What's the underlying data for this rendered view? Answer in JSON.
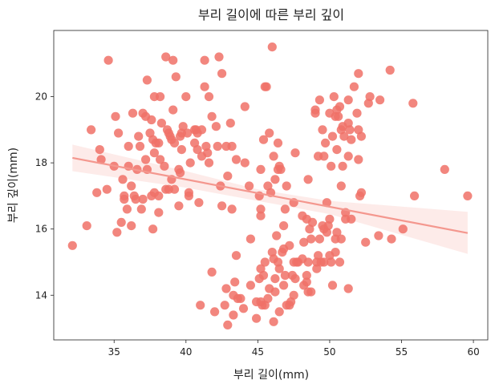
{
  "chart_data": {
    "type": "scatter",
    "title": "부리 길이에 따른 부리 깊이",
    "xlabel": "부리 길이(mm)",
    "ylabel": "부리 깊이(mm)",
    "xlim": [
      30.8,
      61.0
    ],
    "ylim": [
      12.65,
      22.0
    ],
    "xticks": [
      35,
      40,
      45,
      50,
      55,
      60
    ],
    "yticks": [
      14,
      16,
      18,
      20
    ],
    "xtick_labels": [
      "35",
      "40",
      "45",
      "50",
      "55",
      "60"
    ],
    "ytick_labels": [
      "14",
      "16",
      "18",
      "20"
    ],
    "grid": false,
    "colors": {
      "point": "#f07167",
      "line": "#f4978e",
      "band": "#fde6e4"
    },
    "regression": {
      "x": [
        32.1,
        59.6
      ],
      "y": [
        18.15,
        15.88
      ]
    },
    "confidence_band": {
      "x": [
        32.1,
        40.0,
        45.0,
        50.0,
        59.6
      ],
      "upper": [
        18.55,
        17.75,
        17.2,
        16.85,
        16.52
      ],
      "lower": [
        17.75,
        17.25,
        16.85,
        16.45,
        15.25
      ]
    },
    "points": [
      [
        32.1,
        15.5
      ],
      [
        33.1,
        16.1
      ],
      [
        33.4,
        19.0
      ],
      [
        33.8,
        17.1
      ],
      [
        34.1,
        18.1
      ],
      [
        34.0,
        18.4
      ],
      [
        34.6,
        21.1
      ],
      [
        34.5,
        17.2
      ],
      [
        35.0,
        17.9
      ],
      [
        35.1,
        19.4
      ],
      [
        35.3,
        18.9
      ],
      [
        35.5,
        16.2
      ],
      [
        35.2,
        15.9
      ],
      [
        35.6,
        17.5
      ],
      [
        35.7,
        17.0
      ],
      [
        35.7,
        16.9
      ],
      [
        35.9,
        16.6
      ],
      [
        36.0,
        17.9
      ],
      [
        36.0,
        18.5
      ],
      [
        36.2,
        17.3
      ],
      [
        36.2,
        16.1
      ],
      [
        36.3,
        19.5
      ],
      [
        36.4,
        17.0
      ],
      [
        36.5,
        16.9
      ],
      [
        36.6,
        17.8
      ],
      [
        36.7,
        18.8
      ],
      [
        36.8,
        18.5
      ],
      [
        36.9,
        16.6
      ],
      [
        37.0,
        16.9
      ],
      [
        37.0,
        19.5
      ],
      [
        37.2,
        18.1
      ],
      [
        37.2,
        19.4
      ],
      [
        37.3,
        20.5
      ],
      [
        37.3,
        17.8
      ],
      [
        37.5,
        18.9
      ],
      [
        37.6,
        17.0
      ],
      [
        37.6,
        19.3
      ],
      [
        37.7,
        18.7
      ],
      [
        37.7,
        16.0
      ],
      [
        37.8,
        18.3
      ],
      [
        37.8,
        20.0
      ],
      [
        37.8,
        17.1
      ],
      [
        37.9,
        18.6
      ],
      [
        38.1,
        18.6
      ],
      [
        38.1,
        17.0
      ],
      [
        38.1,
        16.5
      ],
      [
        38.2,
        18.1
      ],
      [
        38.2,
        20.0
      ],
      [
        38.3,
        19.2
      ],
      [
        38.5,
        17.9
      ],
      [
        38.6,
        21.2
      ],
      [
        38.6,
        17.2
      ],
      [
        38.7,
        19.0
      ],
      [
        38.8,
        18.9
      ],
      [
        38.8,
        17.2
      ],
      [
        38.9,
        18.8
      ],
      [
        39.0,
        17.5
      ],
      [
        39.0,
        18.7
      ],
      [
        39.1,
        21.1
      ],
      [
        39.1,
        19.6
      ],
      [
        39.2,
        18.6
      ],
      [
        39.2,
        17.2
      ],
      [
        39.3,
        20.6
      ],
      [
        39.5,
        16.7
      ],
      [
        39.5,
        17.8
      ],
      [
        39.6,
        18.8
      ],
      [
        39.6,
        17.7
      ],
      [
        39.7,
        18.9
      ],
      [
        39.7,
        18.4
      ],
      [
        39.8,
        19.1
      ],
      [
        40.0,
        20.0
      ],
      [
        40.1,
        18.9
      ],
      [
        40.2,
        17.0
      ],
      [
        40.2,
        17.1
      ],
      [
        40.3,
        18.0
      ],
      [
        40.6,
        18.6
      ],
      [
        40.6,
        19.0
      ],
      [
        40.7,
        19.0
      ],
      [
        40.8,
        18.4
      ],
      [
        40.8,
        18.9
      ],
      [
        40.9,
        16.8
      ],
      [
        41.0,
        13.7
      ],
      [
        41.1,
        18.2
      ],
      [
        41.1,
        19.0
      ],
      [
        41.3,
        20.3
      ],
      [
        41.3,
        21.1
      ],
      [
        41.4,
        18.5
      ],
      [
        41.5,
        18.3
      ],
      [
        41.6,
        18.0
      ],
      [
        41.6,
        20.0
      ],
      [
        41.8,
        19.4
      ],
      [
        41.8,
        14.7
      ],
      [
        42.0,
        13.5
      ],
      [
        42.1,
        19.1
      ],
      [
        42.2,
        18.5
      ],
      [
        42.3,
        21.2
      ],
      [
        42.4,
        17.3
      ],
      [
        42.5,
        16.7
      ],
      [
        42.5,
        20.7
      ],
      [
        42.7,
        13.7
      ],
      [
        42.8,
        14.2
      ],
      [
        42.8,
        18.5
      ],
      [
        42.9,
        13.1
      ],
      [
        42.9,
        17.6
      ],
      [
        43.1,
        19.2
      ],
      [
        43.2,
        18.5
      ],
      [
        43.2,
        16.6
      ],
      [
        43.3,
        14.0
      ],
      [
        43.3,
        13.4
      ],
      [
        43.4,
        14.4
      ],
      [
        43.5,
        15.2
      ],
      [
        43.5,
        18.1
      ],
      [
        43.6,
        13.9
      ],
      [
        43.8,
        13.9
      ],
      [
        44.0,
        13.6
      ],
      [
        44.1,
        19.7
      ],
      [
        44.1,
        18.0
      ],
      [
        44.4,
        17.3
      ],
      [
        44.5,
        14.3
      ],
      [
        44.5,
        15.7
      ],
      [
        44.9,
        13.8
      ],
      [
        44.9,
        13.3
      ],
      [
        45.1,
        14.5
      ],
      [
        45.1,
        17.0
      ],
      [
        45.2,
        17.8
      ],
      [
        45.2,
        16.4
      ],
      [
        45.2,
        13.8
      ],
      [
        45.2,
        16.6
      ],
      [
        45.2,
        14.8
      ],
      [
        45.3,
        13.7
      ],
      [
        45.4,
        18.7
      ],
      [
        45.4,
        14.6
      ],
      [
        45.5,
        13.7
      ],
      [
        45.5,
        15.0
      ],
      [
        45.5,
        20.3
      ],
      [
        45.6,
        20.3
      ],
      [
        45.7,
        17.3
      ],
      [
        45.7,
        13.9
      ],
      [
        45.8,
        14.2
      ],
      [
        45.8,
        18.9
      ],
      [
        45.9,
        17.1
      ],
      [
        46.0,
        21.5
      ],
      [
        46.0,
        15.3
      ],
      [
        46.1,
        15.1
      ],
      [
        46.1,
        18.2
      ],
      [
        46.1,
        13.2
      ],
      [
        46.2,
        14.1
      ],
      [
        46.2,
        14.5
      ],
      [
        46.2,
        17.5
      ],
      [
        46.3,
        15.8
      ],
      [
        46.4,
        18.6
      ],
      [
        46.4,
        15.0
      ],
      [
        46.4,
        17.8
      ],
      [
        46.5,
        14.8
      ],
      [
        46.5,
        13.5
      ],
      [
        46.5,
        17.9
      ],
      [
        46.6,
        17.8
      ],
      [
        46.7,
        15.3
      ],
      [
        46.8,
        14.3
      ],
      [
        46.8,
        15.4
      ],
      [
        46.8,
        16.1
      ],
      [
        46.9,
        14.6
      ],
      [
        46.9,
        16.6
      ],
      [
        47.0,
        17.3
      ],
      [
        47.0,
        13.7
      ],
      [
        47.2,
        13.7
      ],
      [
        47.2,
        15.5
      ],
      [
        47.3,
        13.8
      ],
      [
        47.4,
        14.6
      ],
      [
        47.5,
        14.0
      ],
      [
        47.5,
        15.0
      ],
      [
        47.5,
        16.8
      ],
      [
        47.6,
        14.5
      ],
      [
        47.6,
        18.3
      ],
      [
        47.7,
        15.0
      ],
      [
        47.8,
        15.0
      ],
      [
        48.1,
        15.1
      ],
      [
        48.1,
        16.4
      ],
      [
        48.2,
        14.3
      ],
      [
        48.2,
        15.6
      ],
      [
        48.4,
        16.3
      ],
      [
        48.4,
        14.4
      ],
      [
        48.4,
        14.6
      ],
      [
        48.5,
        15.0
      ],
      [
        48.5,
        17.5
      ],
      [
        48.5,
        14.1
      ],
      [
        48.6,
        16.0
      ],
      [
        48.7,
        15.7
      ],
      [
        48.7,
        14.1
      ],
      [
        48.8,
        16.2
      ],
      [
        49.0,
        19.5
      ],
      [
        49.0,
        19.6
      ],
      [
        49.1,
        14.8
      ],
      [
        49.1,
        15.0
      ],
      [
        49.2,
        18.2
      ],
      [
        49.2,
        15.2
      ],
      [
        49.3,
        15.7
      ],
      [
        49.3,
        19.9
      ],
      [
        49.4,
        15.0
      ],
      [
        49.5,
        16.1
      ],
      [
        49.5,
        19.0
      ],
      [
        49.6,
        16.0
      ],
      [
        49.6,
        15.0
      ],
      [
        49.6,
        18.2
      ],
      [
        49.7,
        18.6
      ],
      [
        49.8,
        15.9
      ],
      [
        49.8,
        16.8
      ],
      [
        49.9,
        16.1
      ],
      [
        50.0,
        15.2
      ],
      [
        50.0,
        16.3
      ],
      [
        50.0,
        19.5
      ],
      [
        50.1,
        15.0
      ],
      [
        50.1,
        17.9
      ],
      [
        50.2,
        14.3
      ],
      [
        50.2,
        18.8
      ],
      [
        50.3,
        20.0
      ],
      [
        50.4,
        15.3
      ],
      [
        50.4,
        15.7
      ],
      [
        50.4,
        19.4
      ],
      [
        50.5,
        15.9
      ],
      [
        50.5,
        18.4
      ],
      [
        50.5,
        19.6
      ],
      [
        50.6,
        19.4
      ],
      [
        50.7,
        15.0
      ],
      [
        50.7,
        19.7
      ],
      [
        50.8,
        15.7
      ],
      [
        50.8,
        17.3
      ],
      [
        50.8,
        19.0
      ],
      [
        50.9,
        19.1
      ],
      [
        50.9,
        17.9
      ],
      [
        51.0,
        18.8
      ],
      [
        51.1,
        16.3
      ],
      [
        51.1,
        16.5
      ],
      [
        51.3,
        18.2
      ],
      [
        51.3,
        19.2
      ],
      [
        51.3,
        19.9
      ],
      [
        51.3,
        14.2
      ],
      [
        51.4,
        19.0
      ],
      [
        51.5,
        18.7
      ],
      [
        51.5,
        16.3
      ],
      [
        51.7,
        20.3
      ],
      [
        51.9,
        19.5
      ],
      [
        52.0,
        18.1
      ],
      [
        52.0,
        19.0
      ],
      [
        52.0,
        20.7
      ],
      [
        52.1,
        17.0
      ],
      [
        52.2,
        17.1
      ],
      [
        52.2,
        18.8
      ],
      [
        52.5,
        15.6
      ],
      [
        52.7,
        19.8
      ],
      [
        52.8,
        20.0
      ],
      [
        53.4,
        15.8
      ],
      [
        53.5,
        19.9
      ],
      [
        54.2,
        20.8
      ],
      [
        54.3,
        15.7
      ],
      [
        55.1,
        16.0
      ],
      [
        55.8,
        19.8
      ],
      [
        55.9,
        17.0
      ],
      [
        58.0,
        17.8
      ],
      [
        59.6,
        17.0
      ]
    ]
  }
}
